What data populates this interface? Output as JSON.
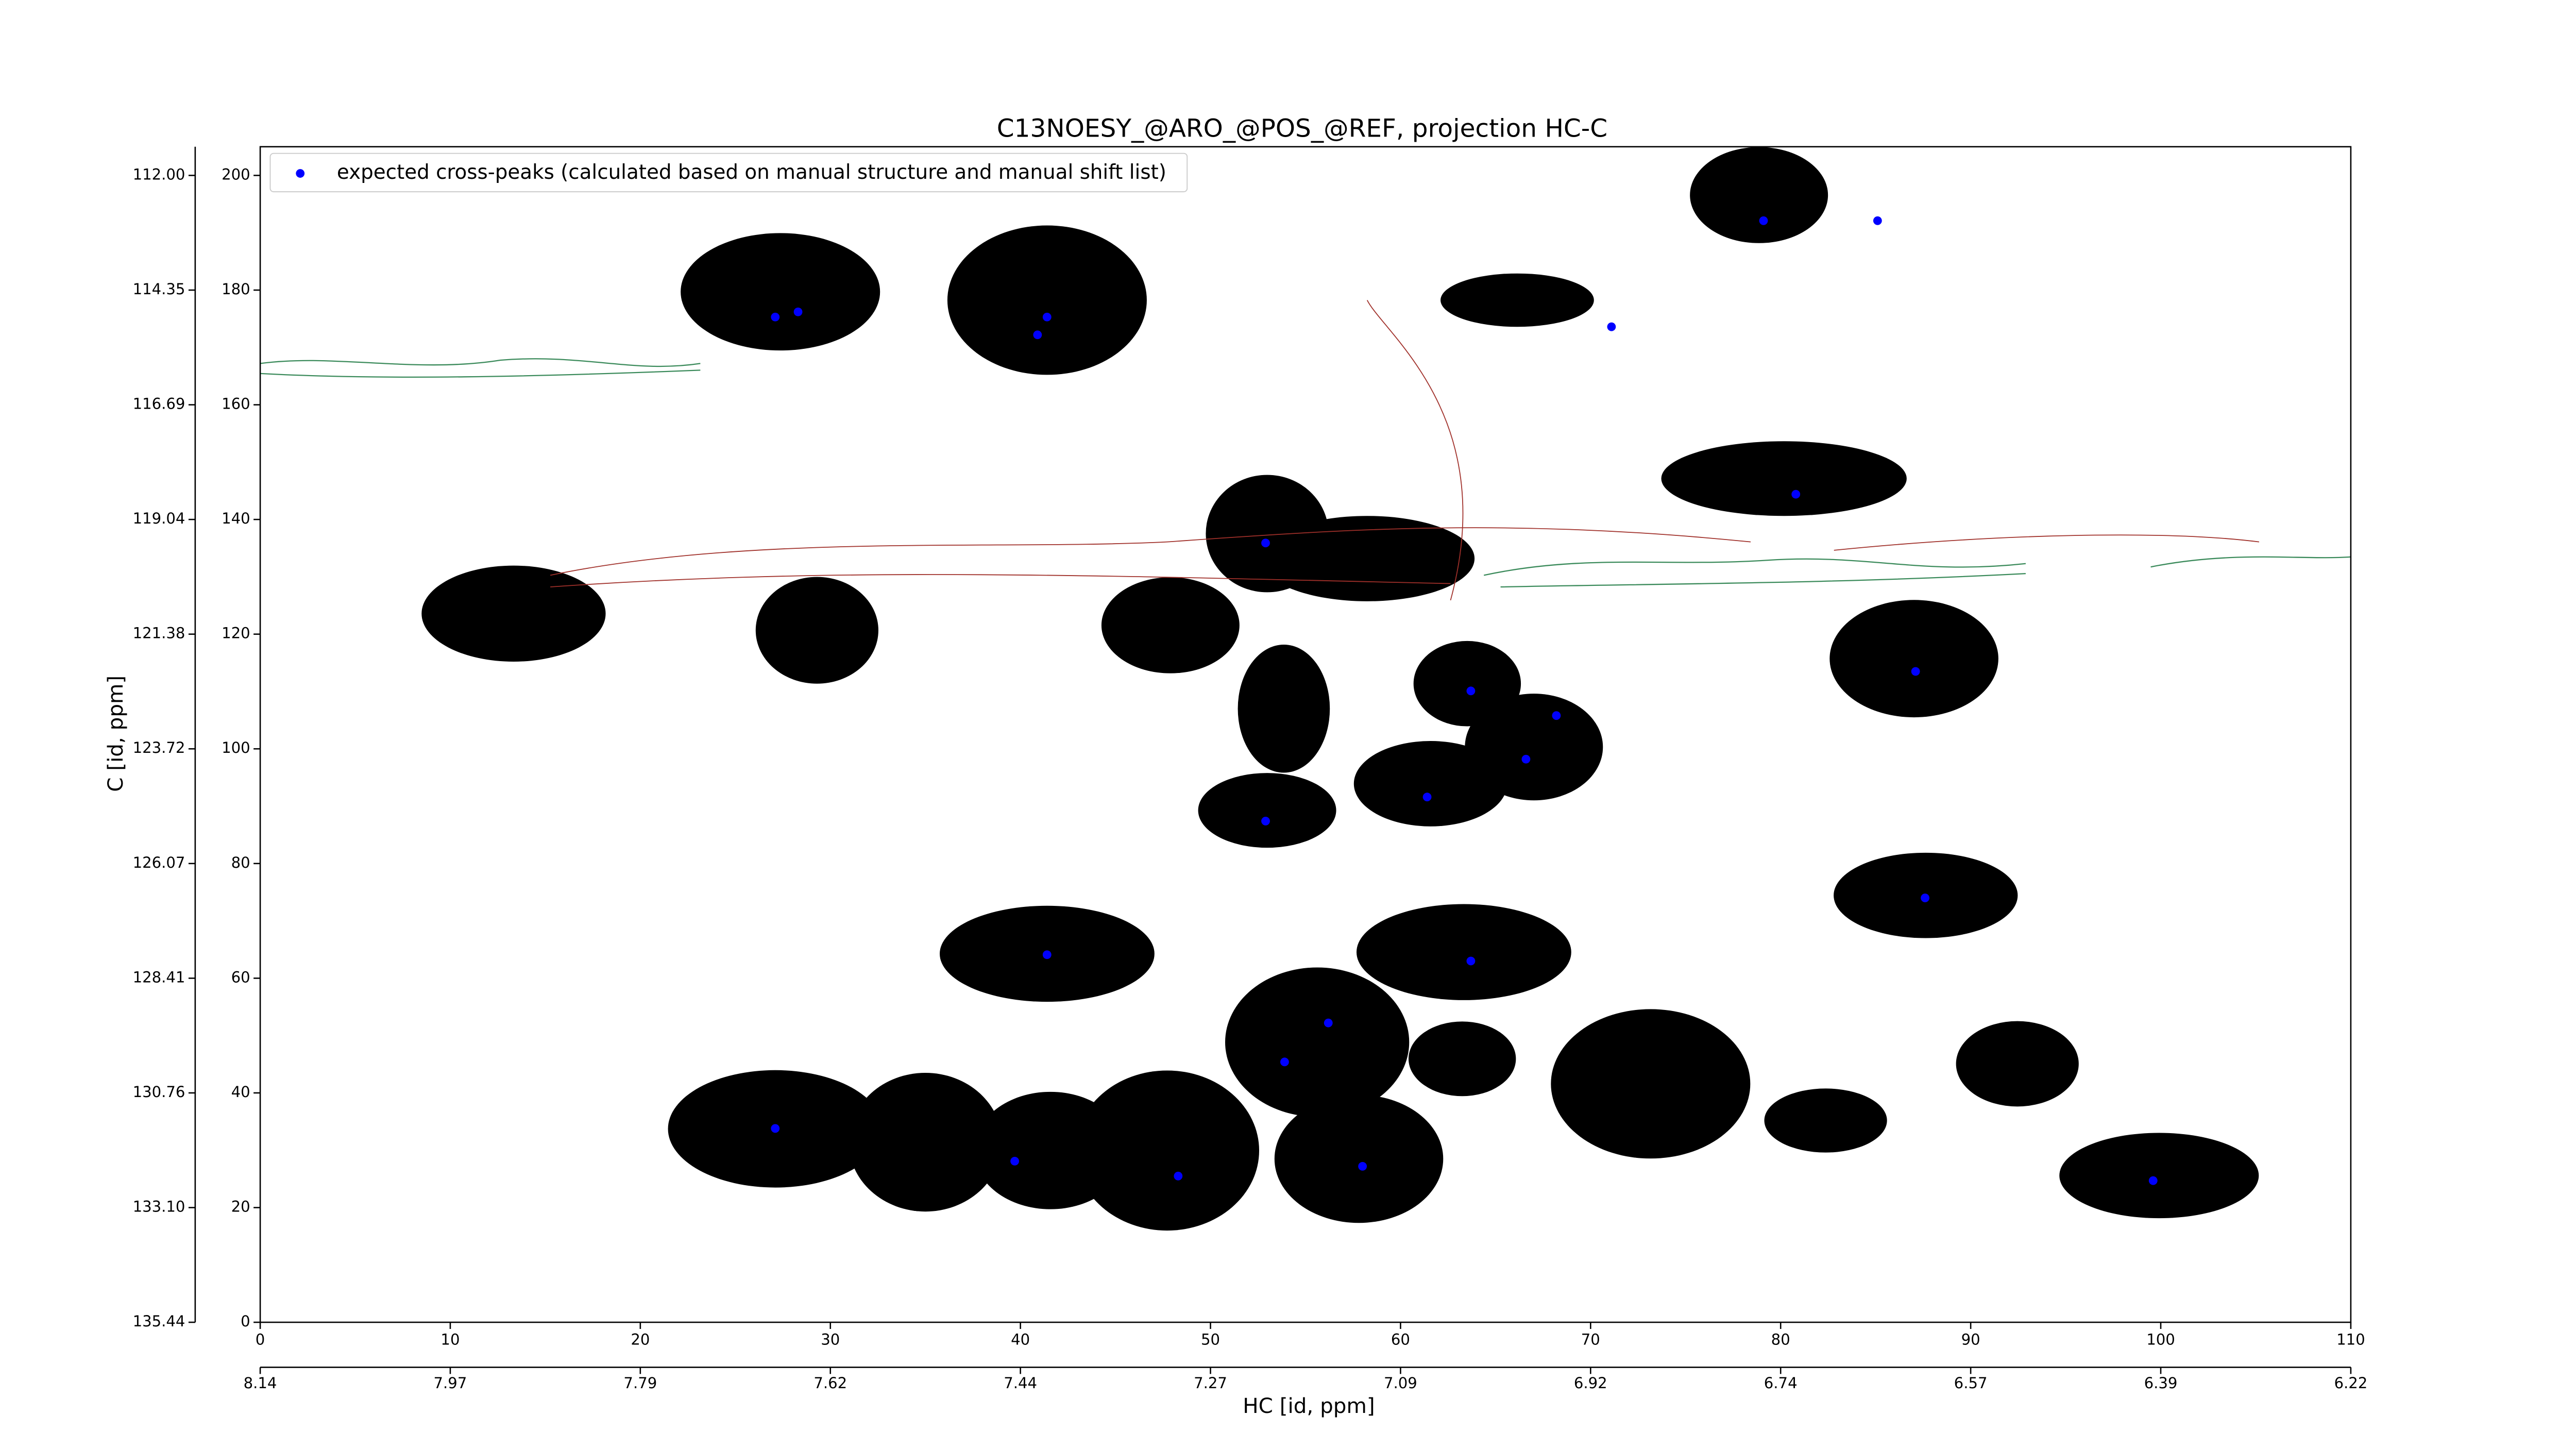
{
  "chart_data": {
    "type": "scatter",
    "title": "C13NOESY_@ARO_@POS_@REF, projection HC-C",
    "x_label": "HC [id, ppm]",
    "y_label": "C [id, ppm]",
    "xlim": [
      0,
      110
    ],
    "ylim": [
      0,
      205
    ],
    "xticks": [
      0,
      10,
      20,
      30,
      40,
      50,
      60,
      70,
      80,
      90,
      100,
      110
    ],
    "yticks": [
      0,
      20,
      40,
      60,
      80,
      100,
      120,
      140,
      160,
      180,
      200
    ],
    "x2ticks": [
      {
        "value": 0,
        "label": "8.14"
      },
      {
        "value": 10,
        "label": "7.97"
      },
      {
        "value": 20,
        "label": "7.79"
      },
      {
        "value": 30,
        "label": "7.62"
      },
      {
        "value": 40,
        "label": "7.44"
      },
      {
        "value": 50,
        "label": "7.27"
      },
      {
        "value": 60,
        "label": "7.09"
      },
      {
        "value": 70,
        "label": "6.92"
      },
      {
        "value": 80,
        "label": "6.74"
      },
      {
        "value": 90,
        "label": "6.57"
      },
      {
        "value": 100,
        "label": "6.39"
      },
      {
        "value": 110,
        "label": "6.22"
      }
    ],
    "y2ticks": [
      {
        "value": 0,
        "label": "135.44"
      },
      {
        "value": 20,
        "label": "133.10"
      },
      {
        "value": 40,
        "label": "130.76"
      },
      {
        "value": 60,
        "label": "128.41"
      },
      {
        "value": 80,
        "label": "126.07"
      },
      {
        "value": 100,
        "label": "123.72"
      },
      {
        "value": 120,
        "label": "121.38"
      },
      {
        "value": 140,
        "label": "119.04"
      },
      {
        "value": 160,
        "label": "116.69"
      },
      {
        "value": 180,
        "label": "114.35"
      },
      {
        "value": 200,
        "label": "112.00"
      }
    ],
    "legend": "upper left",
    "series": [
      {
        "name": "expected cross-peaks (calculated based on manual structure and manual shift list)",
        "color": "#0000ff",
        "x": [
          27.1,
          28.3,
          41.4,
          40.9,
          79.1,
          85.1,
          71.1,
          80.8,
          52.9,
          63.7,
          68.2,
          66.6,
          61.4,
          52.9,
          87.1,
          87.6,
          41.4,
          63.7,
          56.2,
          53.9,
          27.1,
          39.7,
          48.3,
          58.0,
          99.6
        ],
        "y": [
          175.3,
          176.2,
          175.3,
          172.2,
          192.1,
          192.1,
          173.6,
          144.4,
          135.9,
          110.1,
          105.8,
          98.2,
          91.6,
          87.4,
          113.5,
          74.0,
          64.1,
          63.0,
          52.2,
          45.4,
          33.8,
          28.1,
          25.5,
          27.2,
          24.7
        ]
      }
    ]
  }
}
